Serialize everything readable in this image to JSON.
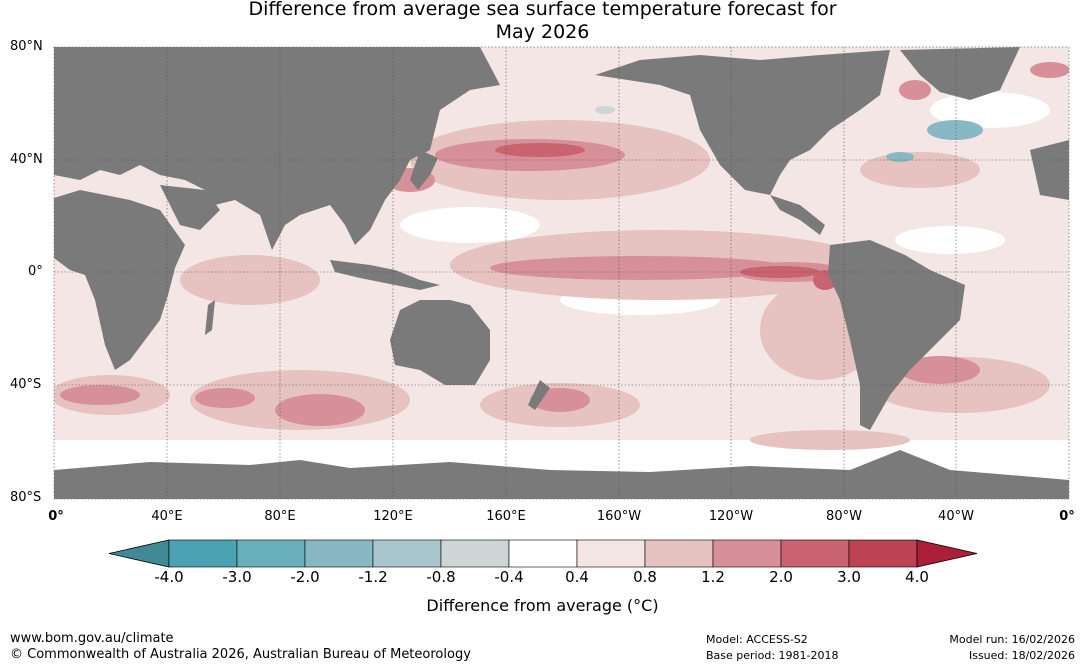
{
  "title": {
    "line1": "Difference from average sea surface temperature forecast for",
    "line2": "May 2026"
  },
  "map": {
    "lat_labels": [
      "80°N",
      "40°N",
      "0°",
      "40°S",
      "80°S"
    ],
    "lon_labels": [
      "0°",
      "40°E",
      "80°E",
      "120°E",
      "160°E",
      "160°W",
      "120°W",
      "80°W",
      "40°W",
      "0°"
    ]
  },
  "colorbar": {
    "ticks": [
      "-4.0",
      "-3.0",
      "-2.0",
      "-1.2",
      "-0.8",
      "-0.4",
      "0.4",
      "0.8",
      "1.2",
      "2.0",
      "3.0",
      "4.0"
    ],
    "colors": [
      "#3f8a96",
      "#4ba2b3",
      "#69aebb",
      "#88b8c4",
      "#a9c6cc",
      "#cdd5d7",
      "#ffffff",
      "#f3e6e5",
      "#e6c2c0",
      "#d7909a",
      "#c8636f",
      "#bc4452",
      "#ad1f39"
    ],
    "label": "Difference from average (°C)"
  },
  "footer": {
    "url": "www.bom.gov.au/climate",
    "copyright": "© Commonwealth of Australia 2026, Australian Bureau of Meteorology",
    "model": "Model: ACCESS-S2",
    "base_period": "Base period: 1981-2018",
    "model_run": "Model run: 16/02/2026",
    "issued": "Issued: 18/02/2026"
  },
  "colors": {
    "land": "#7a7a7a",
    "warm_light": "#f3e6e5",
    "warm_mid": "#e6c2c0",
    "warm_strong": "#d7909a",
    "warm_stronger": "#c8636f",
    "cool": "#88b8c4"
  }
}
